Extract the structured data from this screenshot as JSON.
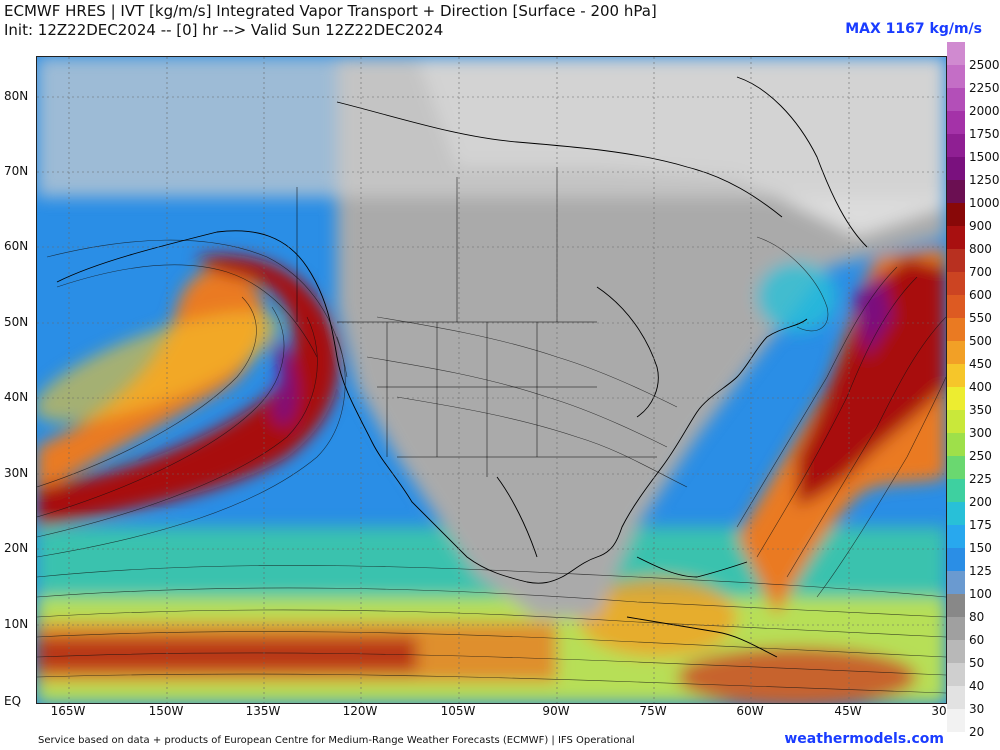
{
  "header": {
    "title_line1": "ECMWF HRES | IVT [kg/m/s] Integrated Vapor Transport + Direction [Surface - 200 hPa]",
    "title_line2": "Init: 12Z22DEC2024 -- [0] hr --> Valid Sun 12Z22DEC2024",
    "max_label": "MAX 1167 kg/m/s"
  },
  "axes": {
    "lat_labels": [
      "80N",
      "70N",
      "60N",
      "50N",
      "40N",
      "30N",
      "20N",
      "10N",
      "EQ"
    ],
    "lon_labels": [
      "165W",
      "150W",
      "135W",
      "120W",
      "105W",
      "90W",
      "75W",
      "60W",
      "45W",
      "30"
    ]
  },
  "colorbar": {
    "labels": [
      "2500",
      "2250",
      "2000",
      "1750",
      "1500",
      "1250",
      "1000",
      "900",
      "800",
      "700",
      "600",
      "550",
      "500",
      "450",
      "400",
      "350",
      "300",
      "250",
      "225",
      "200",
      "175",
      "150",
      "125",
      "100",
      "80",
      "60",
      "50",
      "40",
      "30",
      "20"
    ],
    "colors": [
      "#d08ad0",
      "#c46ec6",
      "#b34fb8",
      "#a432a8",
      "#8f1f93",
      "#7a117e",
      "#6b0f52",
      "#880808",
      "#a81010",
      "#b83020",
      "#cc4422",
      "#dd5a22",
      "#ea7a22",
      "#f2a026",
      "#f6c62a",
      "#eded30",
      "#c9e83a",
      "#9ee04a",
      "#6ad870",
      "#3ed0a0",
      "#28c0d8",
      "#28a8ee",
      "#2a8ee6",
      "#6a9ad0",
      "#888888",
      "#a0a0a0",
      "#b8b8b8",
      "#cfcfcf",
      "#e2e2e2",
      "#f2f2f2"
    ]
  },
  "footer": {
    "credit": "Service based on data + products of European Centre for Medium-Range Weather Forecasts (ECMWF) | IFS Operational",
    "site": "weathermodels.com"
  }
}
